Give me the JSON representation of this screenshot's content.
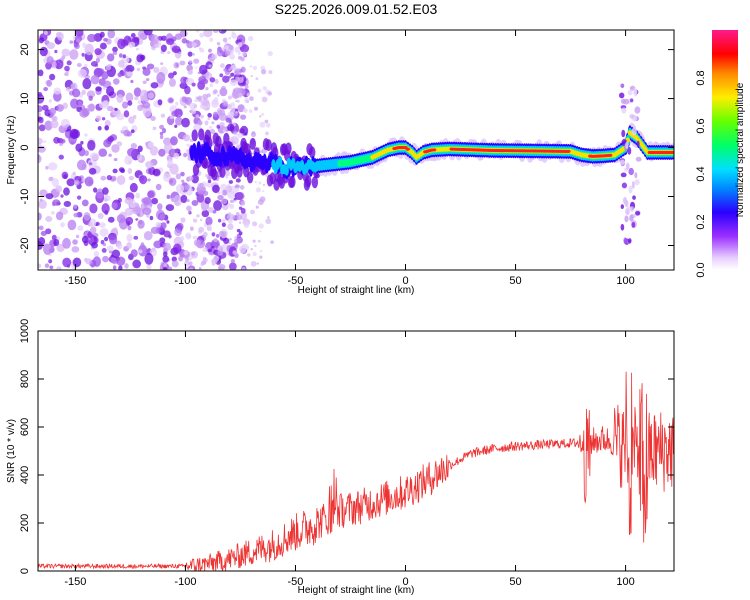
{
  "chart_data": [
    {
      "type": "heatmap",
      "title": "S225.2026.009.01.52.E03",
      "xlabel": "Height of straight line (km)",
      "ylabel": "Frequency (Hz)",
      "xlim": [
        -167,
        122
      ],
      "ylim": [
        -25,
        24
      ],
      "xticks": [
        -150,
        -100,
        -50,
        0,
        50,
        100
      ],
      "yticks": [
        -20,
        -10,
        0,
        10,
        20
      ],
      "colorbar": {
        "label": "Normalized spectral amplitude",
        "ticks": [
          "0.0",
          "0.2",
          "0.4",
          "0.6",
          "0.8"
        ],
        "tick_values": [
          0.0,
          0.2,
          0.4,
          0.6,
          0.8
        ],
        "range": [
          0,
          1
        ]
      },
      "ridge": {
        "description_points_x": [
          -95,
          -80,
          -65,
          -55,
          -45,
          -35,
          -25,
          -15,
          -8,
          -3,
          0,
          3,
          5,
          8,
          12,
          20,
          40,
          60,
          75,
          80,
          85,
          90,
          95,
          100,
          102,
          105,
          110,
          122
        ],
        "description_points_y": [
          -1,
          -2,
          -3,
          -4,
          -4,
          -3.5,
          -3,
          -2,
          -0.5,
          0,
          0,
          -1,
          -2,
          -1,
          -0.5,
          -0.3,
          -0.6,
          -0.7,
          -0.8,
          -1.5,
          -1.8,
          -1.7,
          -1.5,
          0,
          3,
          2,
          -1,
          -1
        ]
      }
    },
    {
      "type": "line",
      "title": "",
      "xlabel": "Height of straight line (km)",
      "ylabel": "SNR (10 * v/v)",
      "xlim": [
        -167,
        122
      ],
      "ylim": [
        0,
        1000
      ],
      "xticks": [
        -150,
        -100,
        -50,
        0,
        50,
        100
      ],
      "yticks": [
        0,
        200,
        400,
        600,
        800,
        1000
      ],
      "series": [
        {
          "name": "SNR",
          "color": "#ee3333",
          "trend_x": [
            -167,
            -100,
            -90,
            -80,
            -70,
            -60,
            -50,
            -40,
            -30,
            -20,
            -10,
            0,
            10,
            20,
            30,
            40,
            50,
            60,
            70,
            80,
            85,
            90,
            100,
            105,
            110,
            115,
            122
          ],
          "trend_y": [
            20,
            20,
            30,
            50,
            80,
            110,
            160,
            200,
            250,
            270,
            300,
            330,
            380,
            440,
            490,
            510,
            520,
            525,
            530,
            535,
            540,
            550,
            520,
            500,
            490,
            500,
            510
          ]
        }
      ]
    }
  ]
}
